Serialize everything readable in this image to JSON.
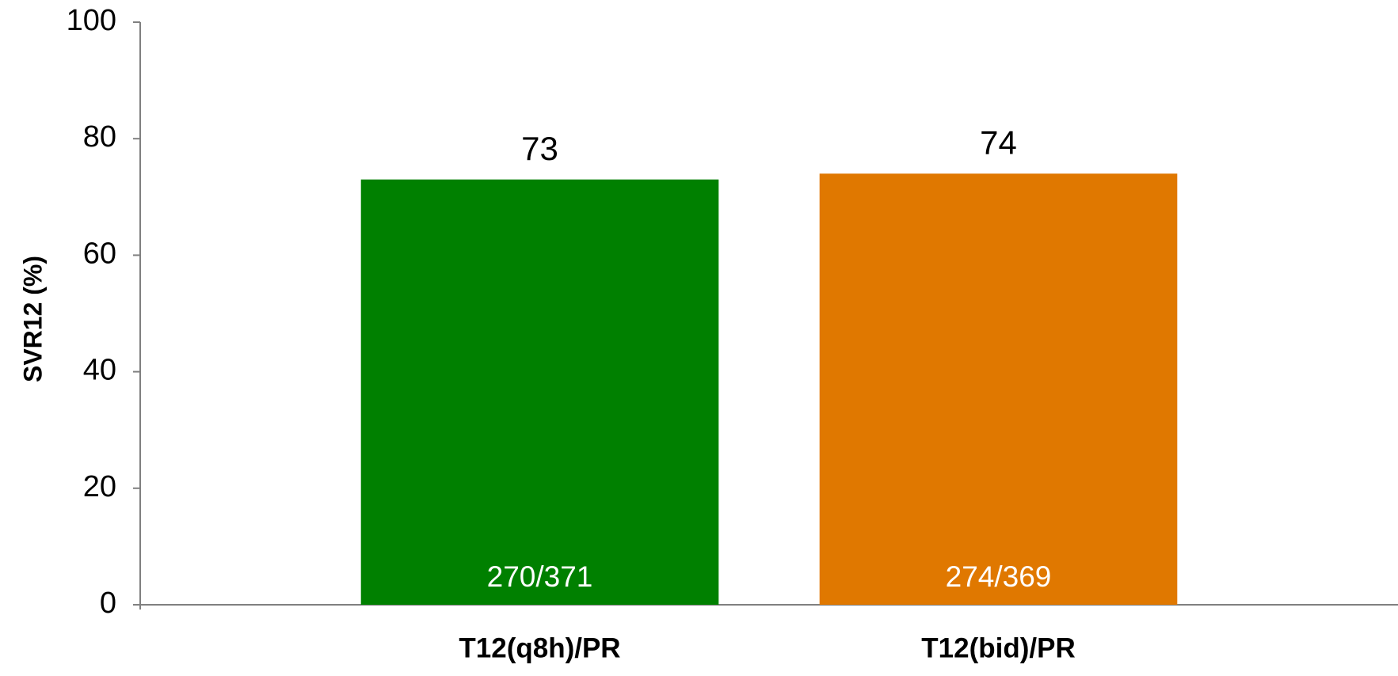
{
  "chart_data": {
    "type": "bar",
    "y_label": "SVR12 (%)",
    "categories": [
      "T12(q8h)/PR",
      "T12(bid)/PR"
    ],
    "values": [
      73,
      74
    ],
    "colors": [
      "#008000",
      "#e07800"
    ],
    "bar_labels": [
      "270/371",
      "274/369"
    ],
    "ylim": [
      0,
      100
    ],
    "yticks": [
      0,
      20,
      40,
      60,
      80,
      100
    ],
    "grid": false
  }
}
